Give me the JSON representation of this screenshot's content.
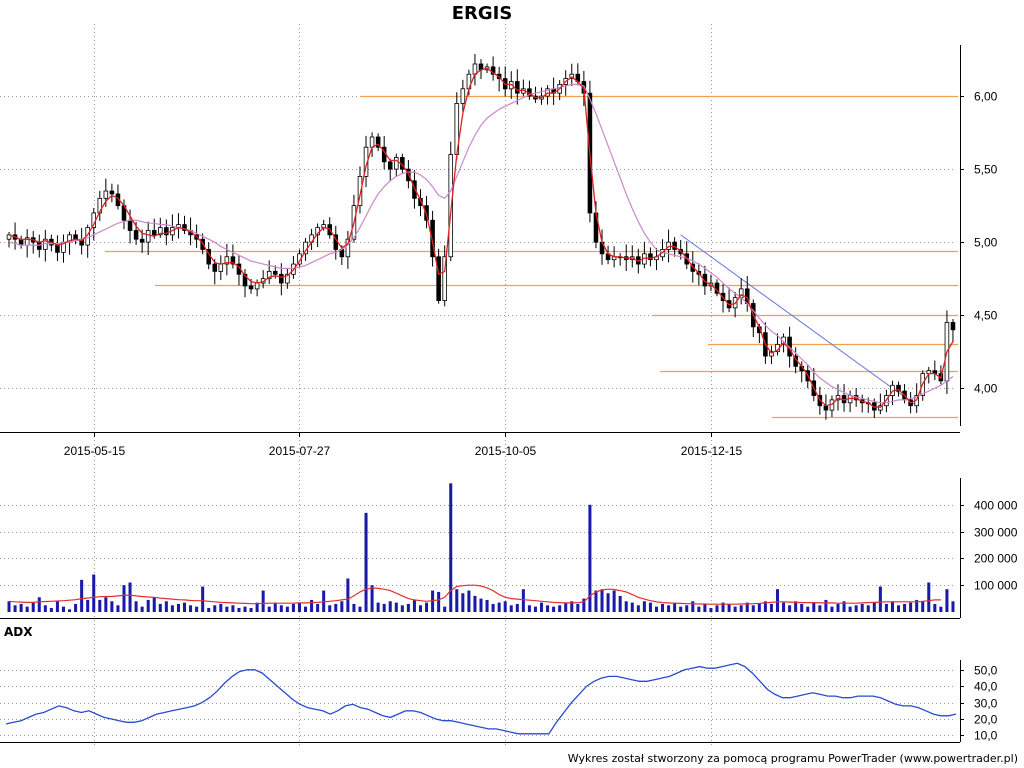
{
  "chart_data": [
    {
      "type": "candlestick",
      "title": "ERGIS",
      "x_ticks": [
        "2015-05-15",
        "2015-07-27",
        "2015-10-05",
        "2015-12-15"
      ],
      "y_ticks": [
        "4,00",
        "4,50",
        "5,00",
        "5,50",
        "6,00"
      ],
      "ylim": [
        3.7,
        6.35
      ],
      "grid": true,
      "close": [
        5.05,
        5.02,
        4.98,
        5.03,
        5.0,
        4.95,
        5.02,
        4.98,
        4.93,
        5.0,
        5.05,
        5.02,
        4.98,
        5.1,
        5.2,
        5.3,
        5.35,
        5.33,
        5.25,
        5.15,
        5.08,
        5.02,
        5.0,
        5.08,
        5.05,
        5.1,
        5.05,
        5.1,
        5.12,
        5.08,
        5.05,
        5.02,
        4.95,
        4.85,
        4.8,
        4.85,
        4.9,
        4.85,
        4.78,
        4.7,
        4.68,
        4.72,
        4.75,
        4.8,
        4.78,
        4.72,
        4.78,
        4.85,
        4.92,
        5.0,
        5.05,
        5.1,
        5.12,
        5.05,
        4.95,
        4.9,
        5.02,
        5.25,
        5.45,
        5.65,
        5.72,
        5.65,
        5.55,
        5.5,
        5.58,
        5.5,
        5.42,
        5.3,
        5.25,
        5.15,
        4.9,
        4.6,
        4.9,
        5.6,
        5.95,
        6.05,
        6.15,
        6.22,
        6.18,
        6.2,
        6.15,
        6.12,
        6.05,
        6.1,
        6.02,
        6.05,
        6.0,
        5.98,
        6.0,
        6.05,
        6.02,
        6.08,
        6.12,
        6.15,
        6.1,
        6.02,
        5.2,
        5.0,
        4.92,
        4.88,
        4.9,
        4.9,
        4.88,
        4.9,
        4.85,
        4.92,
        4.88,
        4.9,
        4.95,
        5.0,
        4.95,
        4.92,
        4.85,
        4.8,
        4.78,
        4.7,
        4.72,
        4.65,
        4.6,
        4.55,
        4.62,
        4.68,
        4.58,
        4.42,
        4.38,
        4.22,
        4.25,
        4.3,
        4.35,
        4.22,
        4.15,
        4.12,
        4.05,
        3.95,
        3.88,
        3.85,
        3.92,
        3.95,
        3.9,
        3.95,
        3.92,
        3.9,
        3.9,
        3.85,
        3.88,
        3.95,
        4.02,
        3.98,
        3.92,
        3.88,
        3.95,
        4.1,
        4.12,
        4.1,
        4.05,
        4.45,
        4.4
      ],
      "sma_fast": [
        5.05,
        5.035,
        5.017,
        5.02,
        5.016,
        5.0,
        5.01,
        5.0,
        4.98,
        4.99,
        5.01,
        5.02,
        5.01,
        5.05,
        5.12,
        5.21,
        5.28,
        5.32,
        5.3,
        5.25,
        5.18,
        5.11,
        5.06,
        5.05,
        5.04,
        5.06,
        5.06,
        5.08,
        5.1,
        5.09,
        5.07,
        5.04,
        4.99,
        4.92,
        4.86,
        4.85,
        4.86,
        4.86,
        4.83,
        4.77,
        4.73,
        4.72,
        4.73,
        4.76,
        4.77,
        4.76,
        4.77,
        4.81,
        4.87,
        4.94,
        5.0,
        5.06,
        5.1,
        5.09,
        5.02,
        4.96,
        4.99,
        5.13,
        5.32,
        5.52,
        5.65,
        5.67,
        5.62,
        5.56,
        5.56,
        5.53,
        5.47,
        5.37,
        5.29,
        5.19,
        5.0,
        4.78,
        4.8,
        5.2,
        5.6,
        5.88,
        6.05,
        6.15,
        6.18,
        6.19,
        6.16,
        6.13,
        6.08,
        6.08,
        6.04,
        6.04,
        6.02,
        5.99,
        5.99,
        6.02,
        6.02,
        6.05,
        6.1,
        6.13,
        6.1,
        6.05,
        5.6,
        5.2,
        5.0,
        4.92,
        4.9,
        4.9,
        4.89,
        4.89,
        4.87,
        4.89,
        4.89,
        4.9,
        4.93,
        4.97,
        4.97,
        4.94,
        4.89,
        4.83,
        4.79,
        4.73,
        4.71,
        4.67,
        4.62,
        4.57,
        4.58,
        4.64,
        4.62,
        4.5,
        4.42,
        4.3,
        4.24,
        4.26,
        4.31,
        4.27,
        4.2,
        4.15,
        4.09,
        4.0,
        3.92,
        3.88,
        3.89,
        3.93,
        3.92,
        3.93,
        3.93,
        3.91,
        3.9,
        3.87,
        3.87,
        3.92,
        3.98,
        3.99,
        3.95,
        3.9,
        3.92,
        4.03,
        4.1,
        4.1,
        4.07,
        4.25,
        4.32
      ],
      "sma_slow": [
        5.0,
        4.99,
        4.98,
        4.98,
        4.98,
        4.98,
        4.99,
        4.99,
        4.99,
        5.0,
        5.0,
        5.01,
        5.02,
        5.03,
        5.05,
        5.07,
        5.09,
        5.11,
        5.13,
        5.14,
        5.15,
        5.15,
        5.14,
        5.13,
        5.13,
        5.12,
        5.12,
        5.11,
        5.1,
        5.09,
        5.08,
        5.06,
        5.04,
        5.02,
        5.0,
        4.97,
        4.95,
        4.93,
        4.91,
        4.89,
        4.87,
        4.86,
        4.85,
        4.84,
        4.83,
        4.82,
        4.82,
        4.82,
        4.83,
        4.84,
        4.86,
        4.88,
        4.9,
        4.92,
        4.93,
        4.95,
        4.98,
        5.03,
        5.1,
        5.18,
        5.26,
        5.33,
        5.38,
        5.42,
        5.45,
        5.47,
        5.48,
        5.48,
        5.46,
        5.43,
        5.38,
        5.32,
        5.3,
        5.35,
        5.45,
        5.55,
        5.65,
        5.73,
        5.8,
        5.85,
        5.88,
        5.91,
        5.93,
        5.95,
        5.97,
        5.99,
        6.01,
        6.02,
        6.03,
        6.04,
        6.05,
        6.06,
        6.07,
        6.08,
        6.08,
        6.07,
        5.98,
        5.88,
        5.77,
        5.66,
        5.55,
        5.44,
        5.33,
        5.23,
        5.14,
        5.06,
        5.0,
        4.95,
        4.93,
        4.92,
        4.91,
        4.9,
        4.89,
        4.87,
        4.85,
        4.82,
        4.79,
        4.76,
        4.72,
        4.68,
        4.65,
        4.62,
        4.58,
        4.53,
        4.48,
        4.43,
        4.39,
        4.36,
        4.32,
        4.28,
        4.24,
        4.2,
        4.16,
        4.11,
        4.07,
        4.04,
        4.01,
        3.99,
        3.97,
        3.95,
        3.94,
        3.93,
        3.92,
        3.91,
        3.9,
        3.9,
        3.91,
        3.92,
        3.92,
        3.93,
        3.94,
        3.96,
        3.98,
        4.0,
        4.02,
        4.05,
        4.08
      ],
      "support_resistance_levels": [
        6.0,
        4.94,
        4.71,
        4.5,
        4.3,
        4.12,
        3.8
      ]
    },
    {
      "type": "bar",
      "title": "",
      "y_ticks": [
        "100 000",
        "200 000",
        "300 000",
        "400 000"
      ],
      "ylim": [
        0,
        500000
      ],
      "values": [
        40000,
        25000,
        30000,
        20000,
        35000,
        55000,
        25000,
        15000,
        40000,
        20000,
        10000,
        30000,
        120000,
        45000,
        140000,
        45000,
        55000,
        40000,
        25000,
        100000,
        110000,
        40000,
        20000,
        45000,
        55000,
        30000,
        40000,
        25000,
        30000,
        35000,
        25000,
        20000,
        95000,
        15000,
        25000,
        30000,
        20000,
        25000,
        15000,
        20000,
        15000,
        35000,
        80000,
        20000,
        35000,
        25000,
        20000,
        30000,
        35000,
        20000,
        45000,
        30000,
        80000,
        25000,
        30000,
        40000,
        125000,
        30000,
        20000,
        370000,
        100000,
        35000,
        30000,
        40000,
        35000,
        25000,
        30000,
        45000,
        25000,
        35000,
        80000,
        75000,
        20000,
        480000,
        85000,
        70000,
        80000,
        60000,
        50000,
        45000,
        30000,
        35000,
        40000,
        25000,
        30000,
        85000,
        25000,
        20000,
        35000,
        25000,
        20000,
        25000,
        35000,
        40000,
        30000,
        50000,
        400000,
        80000,
        85000,
        70000,
        80000,
        60000,
        40000,
        35000,
        25000,
        40000,
        35000,
        20000,
        30000,
        25000,
        35000,
        20000,
        25000,
        40000,
        20000,
        30000,
        15000,
        25000,
        35000,
        30000,
        20000,
        25000,
        35000,
        25000,
        30000,
        40000,
        30000,
        85000,
        35000,
        25000,
        40000,
        30000,
        20000,
        35000,
        25000,
        45000,
        20000,
        30000,
        40000,
        20000,
        25000,
        30000,
        25000,
        35000,
        95000,
        30000,
        40000,
        25000,
        30000,
        35000,
        45000,
        40000,
        110000,
        30000,
        20000,
        85000,
        40000
      ],
      "average": [
        40000,
        38000,
        37000,
        36000,
        36000,
        38000,
        39000,
        40000,
        41000,
        42000,
        44000,
        46000,
        50000,
        52000,
        55000,
        57000,
        58000,
        58000,
        60000,
        62000,
        63000,
        60000,
        58000,
        56000,
        55000,
        52000,
        50000,
        48000,
        46000,
        45000,
        43000,
        42000,
        42000,
        40000,
        38000,
        36000,
        35000,
        34000,
        33000,
        32000,
        31000,
        31000,
        32000,
        33000,
        33000,
        33000,
        33000,
        33000,
        34000,
        34000,
        35000,
        36000,
        38000,
        40000,
        42000,
        45000,
        48000,
        60000,
        75000,
        85000,
        90000,
        88000,
        85000,
        80000,
        70000,
        60000,
        50000,
        45000,
        42000,
        40000,
        42000,
        45000,
        55000,
        80000,
        95000,
        98000,
        100000,
        100000,
        97000,
        90000,
        80000,
        65000,
        55000,
        50000,
        48000,
        46000,
        44000,
        42000,
        40000,
        38000,
        36000,
        35000,
        34000,
        34000,
        35000,
        38000,
        60000,
        75000,
        82000,
        85000,
        84000,
        80000,
        75000,
        65000,
        55000,
        48000,
        42000,
        38000,
        35000,
        34000,
        33000,
        32000,
        31000,
        31000,
        30000,
        30000,
        29000,
        29000,
        29000,
        29000,
        29000,
        30000,
        30000,
        31000,
        32000,
        34000,
        36000,
        38000,
        38000,
        37000,
        36000,
        35000,
        35000,
        35000,
        34000,
        34000,
        34000,
        33000,
        33000,
        33000,
        33000,
        34000,
        35000,
        36000,
        37000,
        38000,
        38000,
        38000,
        38000,
        38000,
        38000,
        40000,
        42000,
        45000,
        45000
      ]
    },
    {
      "type": "line",
      "title": "ADX",
      "y_ticks": [
        "10,0",
        "20,0",
        "30,0",
        "40,0",
        "50,0"
      ],
      "ylim": [
        6,
        56
      ],
      "series": [
        {
          "name": "ADX",
          "values": [
            17,
            18,
            19,
            21,
            23,
            24,
            26,
            28,
            27,
            25,
            24,
            25,
            23,
            21,
            20,
            19,
            18,
            18,
            19,
            21,
            23,
            24,
            25,
            26,
            27,
            28,
            30,
            33,
            37,
            42,
            46,
            49,
            50,
            50,
            48,
            44,
            40,
            36,
            32,
            29,
            27,
            26,
            25,
            23,
            25,
            28,
            29,
            27,
            26,
            24,
            22,
            21,
            23,
            25,
            25,
            24,
            22,
            20,
            19,
            19,
            18,
            17,
            16,
            15,
            14,
            14,
            13,
            12,
            11,
            11,
            11,
            11,
            11,
            18,
            24,
            30,
            35,
            40,
            43,
            45,
            46,
            46,
            45,
            44,
            43,
            43,
            44,
            45,
            46,
            48,
            50,
            51,
            52,
            51,
            51,
            52,
            53,
            54,
            52,
            48,
            43,
            38,
            35,
            33,
            33,
            34,
            35,
            36,
            35,
            34,
            34,
            33,
            33,
            34,
            34,
            34,
            33,
            31,
            29,
            28,
            28,
            27,
            25,
            23,
            22,
            22,
            23
          ]
        }
      ]
    }
  ],
  "footer": "Wykres został stworzony za pomocą programu PowerTrader (www.powertrader.pl)",
  "colors": {
    "candle_up": "#ffffff",
    "candle_down": "#000000",
    "sma_fast": "#dd2222",
    "sma_slow": "#cc88cc",
    "levels": "#f0a050",
    "trendline": "#6677dd",
    "volume_bars": "#1a1aa8",
    "volume_avg": "#e03030",
    "adx_line": "#2a4ad0",
    "grid": "#999999"
  }
}
